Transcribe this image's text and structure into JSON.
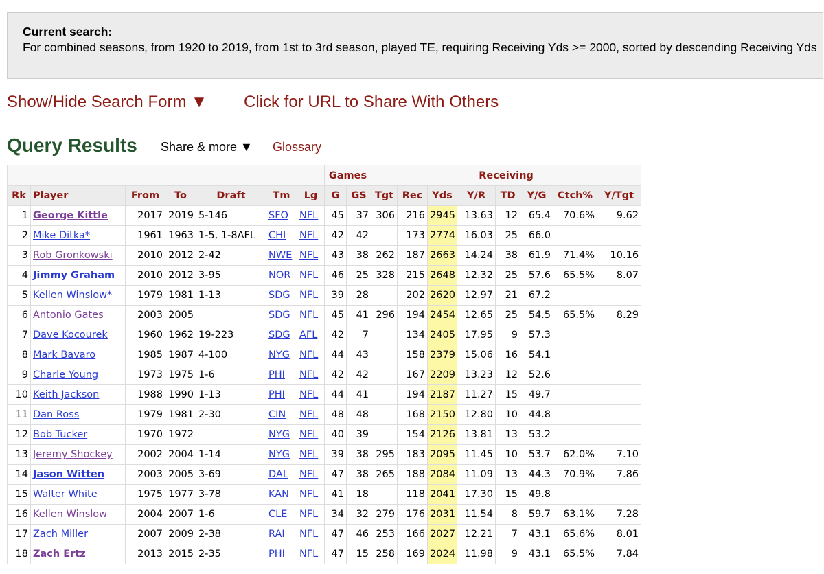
{
  "search": {
    "label": "Current search:",
    "text": "For combined seasons, from 1920 to 2019, from 1st to 3rd season, played TE, requiring Receiving Yds >= 2000, sorted by descending Receiving Yds"
  },
  "links": {
    "search_form": "Show/Hide Search Form ▼",
    "share_url": "Click for URL to Share With Others"
  },
  "results": {
    "title": "Query Results",
    "share": "Share & more ▼",
    "glossary": "Glossary"
  },
  "table": {
    "groups": [
      "Games",
      "Receiving"
    ],
    "columns": [
      "Rk",
      "Player",
      "From",
      "To",
      "Draft",
      "Tm",
      "Lg",
      "G",
      "GS",
      "Tgt",
      "Rec",
      "Yds",
      "Y/R",
      "TD",
      "Y/G",
      "Ctch%",
      "Y/Tgt"
    ],
    "rows": [
      [
        "1",
        "George Kittle",
        "2017",
        "2019",
        "5-146",
        "SFO",
        "NFL",
        "45",
        "37",
        "306",
        "216",
        "2945",
        "13.63",
        "12",
        "65.4",
        "70.6%",
        "9.62"
      ],
      [
        "2",
        "Mike Ditka*",
        "1961",
        "1963",
        "1-5, 1-8AFL",
        "CHI",
        "NFL",
        "42",
        "42",
        null,
        "173",
        "2774",
        "16.03",
        "25",
        "66.0",
        null,
        null
      ],
      [
        "3",
        "Rob Gronkowski",
        "2010",
        "2012",
        "2-42",
        "NWE",
        "NFL",
        "43",
        "38",
        "262",
        "187",
        "2663",
        "14.24",
        "38",
        "61.9",
        "71.4%",
        "10.16"
      ],
      [
        "4",
        "Jimmy Graham",
        "2010",
        "2012",
        "3-95",
        "NOR",
        "NFL",
        "46",
        "25",
        "328",
        "215",
        "2648",
        "12.32",
        "25",
        "57.6",
        "65.5%",
        "8.07"
      ],
      [
        "5",
        "Kellen Winslow*",
        "1979",
        "1981",
        "1-13",
        "SDG",
        "NFL",
        "39",
        "28",
        null,
        "202",
        "2620",
        "12.97",
        "21",
        "67.2",
        null,
        null
      ],
      [
        "6",
        "Antonio Gates",
        "2003",
        "2005",
        null,
        "SDG",
        "NFL",
        "45",
        "41",
        "296",
        "194",
        "2454",
        "12.65",
        "25",
        "54.5",
        "65.5%",
        "8.29"
      ],
      [
        "7",
        "Dave Kocourek",
        "1960",
        "1962",
        "19-223",
        "SDG",
        "AFL",
        "42",
        "7",
        null,
        "134",
        "2405",
        "17.95",
        "9",
        "57.3",
        null,
        null
      ],
      [
        "8",
        "Mark Bavaro",
        "1985",
        "1987",
        "4-100",
        "NYG",
        "NFL",
        "44",
        "43",
        null,
        "158",
        "2379",
        "15.06",
        "16",
        "54.1",
        null,
        null
      ],
      [
        "9",
        "Charle Young",
        "1973",
        "1975",
        "1-6",
        "PHI",
        "NFL",
        "42",
        "42",
        null,
        "167",
        "2209",
        "13.23",
        "12",
        "52.6",
        null,
        null
      ],
      [
        "10",
        "Keith Jackson",
        "1988",
        "1990",
        "1-13",
        "PHI",
        "NFL",
        "44",
        "41",
        null,
        "194",
        "2187",
        "11.27",
        "15",
        "49.7",
        null,
        null
      ],
      [
        "11",
        "Dan Ross",
        "1979",
        "1981",
        "2-30",
        "CIN",
        "NFL",
        "48",
        "48",
        null,
        "168",
        "2150",
        "12.80",
        "10",
        "44.8",
        null,
        null
      ],
      [
        "12",
        "Bob Tucker",
        "1970",
        "1972",
        null,
        "NYG",
        "NFL",
        "40",
        "39",
        null,
        "154",
        "2126",
        "13.81",
        "13",
        "53.2",
        null,
        null
      ],
      [
        "13",
        "Jeremy Shockey",
        "2002",
        "2004",
        "1-14",
        "NYG",
        "NFL",
        "39",
        "38",
        "295",
        "183",
        "2095",
        "11.45",
        "10",
        "53.7",
        "62.0%",
        "7.10"
      ],
      [
        "14",
        "Jason Witten",
        "2003",
        "2005",
        "3-69",
        "DAL",
        "NFL",
        "47",
        "38",
        "265",
        "188",
        "2084",
        "11.09",
        "13",
        "44.3",
        "70.9%",
        "7.86"
      ],
      [
        "15",
        "Walter White",
        "1975",
        "1977",
        "3-78",
        "KAN",
        "NFL",
        "41",
        "18",
        null,
        "118",
        "2041",
        "17.30",
        "15",
        "49.8",
        null,
        null
      ],
      [
        "16",
        "Kellen Winslow",
        "2004",
        "2007",
        "1-6",
        "CLE",
        "NFL",
        "34",
        "32",
        "279",
        "176",
        "2031",
        "11.54",
        "8",
        "59.7",
        "63.1%",
        "7.28"
      ],
      [
        "17",
        "Zach Miller",
        "2007",
        "2009",
        "2-38",
        "RAI",
        "NFL",
        "47",
        "46",
        "253",
        "166",
        "2027",
        "12.21",
        "7",
        "43.1",
        "65.6%",
        "8.01"
      ],
      [
        "18",
        "Zach Ertz",
        "2013",
        "2015",
        "2-35",
        "PHI",
        "NFL",
        "47",
        "15",
        "258",
        "169",
        "2024",
        "11.98",
        "9",
        "43.1",
        "65.5%",
        "7.84"
      ]
    ]
  }
}
